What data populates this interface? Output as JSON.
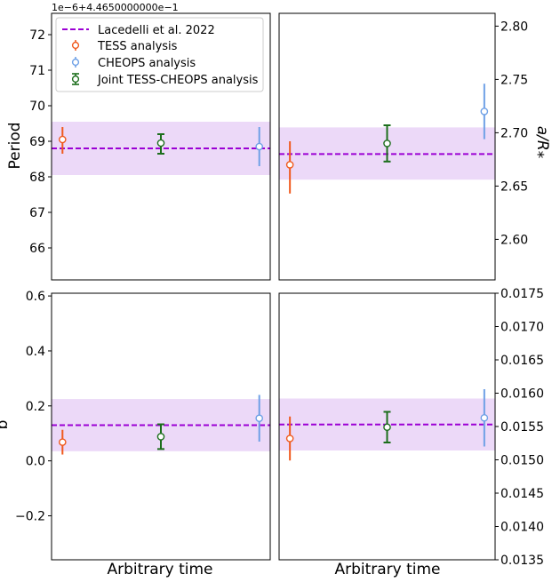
{
  "colors": {
    "reference_line": "#9b00d4",
    "reference_band": "#ecd9f8",
    "tess": "#f05a1e",
    "cheops": "#6ea0e6",
    "joint": "#1c6e1c"
  },
  "legend": {
    "reference": "Lacedelli et al. 2022",
    "tess": "TESS analysis",
    "cheops": "CHEOPS analysis",
    "joint": "Joint TESS-CHEOPS analysis"
  },
  "chart_data": [
    {
      "type": "scatter",
      "panel": "top-left",
      "ylabel": "Period",
      "offset_text": "1e−6+4.4650000000e−1",
      "xlabel": "",
      "ylim": [
        65.1,
        72.6
      ],
      "yticks": [
        "66",
        "67",
        "68",
        "69",
        "70",
        "71",
        "72"
      ],
      "reference": {
        "value": 68.8,
        "band": [
          68.05,
          69.55
        ]
      },
      "series": [
        {
          "key": "tess",
          "x": 0.05,
          "y": 69.05,
          "yerr_low": 0.4,
          "yerr_high": 0.35
        },
        {
          "key": "joint",
          "x": 0.5,
          "y": 68.95,
          "yerr_low": 0.3,
          "yerr_high": 0.25
        },
        {
          "key": "cheops",
          "x": 0.95,
          "y": 68.85,
          "yerr_low": 0.55,
          "yerr_high": 0.55
        }
      ]
    },
    {
      "type": "scatter",
      "panel": "top-right",
      "ylabel": "a/R⁎",
      "xlabel": "",
      "ylim": [
        2.562,
        2.812
      ],
      "yticks": [
        "2.60",
        "2.65",
        "2.70",
        "2.75",
        "2.80"
      ],
      "reference": {
        "value": 2.68,
        "band": [
          2.656,
          2.705
        ]
      },
      "series": [
        {
          "key": "tess",
          "x": 0.05,
          "y": 2.67,
          "yerr_low": 0.027,
          "yerr_high": 0.022
        },
        {
          "key": "joint",
          "x": 0.5,
          "y": 2.69,
          "yerr_low": 0.017,
          "yerr_high": 0.017
        },
        {
          "key": "cheops",
          "x": 0.95,
          "y": 2.72,
          "yerr_low": 0.026,
          "yerr_high": 0.026
        }
      ]
    },
    {
      "type": "scatter",
      "panel": "bottom-left",
      "ylabel": "b",
      "xlabel": "Arbitrary time",
      "ylim": [
        -0.36,
        0.61
      ],
      "yticks": [
        "−0.2",
        "0.0",
        "0.2",
        "0.4",
        "0.6"
      ],
      "reference": {
        "value": 0.13,
        "band": [
          0.035,
          0.225
        ]
      },
      "series": [
        {
          "key": "tess",
          "x": 0.05,
          "y": 0.068,
          "yerr_low": 0.045,
          "yerr_high": 0.045
        },
        {
          "key": "joint",
          "x": 0.5,
          "y": 0.088,
          "yerr_low": 0.045,
          "yerr_high": 0.045
        },
        {
          "key": "cheops",
          "x": 0.95,
          "y": 0.155,
          "yerr_low": 0.085,
          "yerr_high": 0.085
        }
      ]
    },
    {
      "type": "scatter",
      "panel": "bottom-right",
      "ylabel": "",
      "xlabel": "Arbitrary time",
      "ylim": [
        0.0135,
        0.0175
      ],
      "yticks": [
        "0.0135",
        "0.0140",
        "0.0145",
        "0.0150",
        "0.0155",
        "0.0160",
        "0.0165",
        "0.0170",
        "0.0175"
      ],
      "reference": {
        "value": 0.01553,
        "band": [
          0.01514,
          0.01592
        ]
      },
      "series": [
        {
          "key": "tess",
          "x": 0.05,
          "y": 0.01532,
          "yerr_low": 0.00033,
          "yerr_high": 0.00033
        },
        {
          "key": "joint",
          "x": 0.5,
          "y": 0.01549,
          "yerr_low": 0.00023,
          "yerr_high": 0.00023
        },
        {
          "key": "cheops",
          "x": 0.95,
          "y": 0.01563,
          "yerr_low": 0.00043,
          "yerr_high": 0.00043
        }
      ]
    }
  ]
}
